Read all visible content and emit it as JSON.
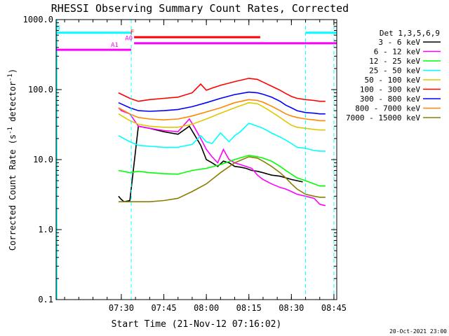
{
  "chart_data": {
    "type": "line",
    "title": "RHESSI Observing Summary Count Rates, Corrected",
    "xlabel": "Start Time (21-Nov-12 07:16:02)",
    "ylabel_main": "Corrected Count Rate (s",
    "ylabel_exp1": "-1",
    "ylabel_mid": " detector",
    "ylabel_exp2": "-1",
    "ylabel_end": ")",
    "y_scale": "log",
    "ylim": [
      0.1,
      1000
    ],
    "xlim_minutes": [
      7.0,
      106.0
    ],
    "x_ticks": [
      {
        "m": 30,
        "label": "07:30"
      },
      {
        "m": 45,
        "label": "07:45"
      },
      {
        "m": 60,
        "label": "08:00"
      },
      {
        "m": 75,
        "label": "08:15"
      },
      {
        "m": 90,
        "label": "08:30"
      },
      {
        "m": 105,
        "label": "08:45"
      }
    ],
    "y_ticks": [
      {
        "v": 0.1,
        "label": "0.1"
      },
      {
        "v": 1,
        "label": "1.0"
      },
      {
        "v": 10,
        "label": "10.0"
      },
      {
        "v": 100,
        "label": "100.0"
      },
      {
        "v": 1000,
        "label": "1000.0"
      }
    ],
    "legend_title": "Det 1,3,5,6,9",
    "legend_position": "right",
    "series": [
      {
        "name": "3 - 6 keV",
        "color": "#000000",
        "x": [
          29,
          30,
          31,
          33,
          36,
          40,
          45,
          50,
          54,
          56,
          58,
          60,
          62,
          64,
          66,
          68,
          70,
          72,
          74,
          76,
          78,
          80,
          83,
          86,
          88,
          90,
          92,
          94
        ],
        "y": [
          3,
          2.7,
          2.5,
          2.6,
          30,
          28,
          25,
          23,
          30,
          22,
          16,
          10,
          9,
          8,
          9.5,
          9,
          8,
          7.8,
          7.5,
          7,
          6.8,
          6.5,
          6,
          5.8,
          5.5,
          5.2,
          5,
          4.8
        ]
      },
      {
        "name": "6 - 12 keV",
        "color": "#ff00ff",
        "x": [
          29,
          30,
          33,
          36,
          40,
          45,
          50,
          54,
          56,
          58,
          60,
          62,
          64,
          66,
          68,
          70,
          72,
          74,
          76,
          78,
          80,
          83,
          86,
          88,
          90,
          92,
          95,
          98,
          100,
          102
        ],
        "y": [
          55,
          50,
          45,
          30,
          28,
          26,
          25,
          38,
          28,
          20,
          14,
          11,
          9,
          14,
          10,
          9,
          8.5,
          8,
          7.5,
          6,
          5.2,
          4.5,
          4,
          3.8,
          3.5,
          3.2,
          3,
          2.8,
          2.3,
          2.2
        ]
      },
      {
        "name": "12 - 25 keV",
        "color": "#00ff00",
        "x": [
          29,
          33,
          36,
          40,
          45,
          50,
          55,
          60,
          65,
          70,
          75,
          78,
          80,
          83,
          86,
          88,
          90,
          92,
          95,
          98,
          100,
          102
        ],
        "y": [
          7,
          6.5,
          6.8,
          6.5,
          6.3,
          6.2,
          7,
          7.5,
          8.5,
          10,
          11.5,
          11,
          10.5,
          9.5,
          8,
          7,
          6.2,
          5.5,
          5,
          4.5,
          4.2,
          4.2
        ]
      },
      {
        "name": "25 - 50 keV",
        "color": "#00ffff",
        "x": [
          29,
          33,
          36,
          40,
          45,
          50,
          55,
          58,
          60,
          62,
          65,
          68,
          70,
          72,
          75,
          78,
          80,
          83,
          86,
          88,
          90,
          92,
          95,
          98,
          100,
          102
        ],
        "y": [
          22,
          18,
          16,
          15.5,
          15,
          15,
          16.5,
          22,
          18,
          17,
          24,
          18,
          22,
          25,
          33,
          30,
          28,
          24,
          21,
          19,
          17,
          15,
          14.5,
          13.5,
          13.2,
          13.2
        ]
      },
      {
        "name": "50 - 100 keV",
        "color": "#e0c800",
        "x": [
          29,
          33,
          36,
          40,
          45,
          50,
          55,
          60,
          65,
          70,
          75,
          78,
          80,
          83,
          86,
          88,
          90,
          92,
          95,
          98,
          100,
          102
        ],
        "y": [
          45,
          36,
          32,
          30,
          29,
          29,
          32,
          38,
          46,
          55,
          65,
          63,
          57,
          48,
          40,
          35,
          31,
          29,
          28,
          27,
          26.5,
          26.5
        ]
      },
      {
        "name": "100 - 300 keV",
        "color": "#ff0000",
        "x": [
          29,
          33,
          36,
          40,
          45,
          50,
          55,
          58,
          60,
          62,
          65,
          70,
          75,
          78,
          80,
          83,
          86,
          88,
          90,
          92,
          95,
          98,
          100,
          102
        ],
        "y": [
          90,
          75,
          68,
          72,
          75,
          78,
          90,
          120,
          98,
          105,
          115,
          130,
          145,
          140,
          128,
          112,
          98,
          88,
          80,
          75,
          72,
          70,
          68,
          68
        ]
      },
      {
        "name": "300 - 800 keV",
        "color": "#0000ff",
        "x": [
          29,
          33,
          36,
          40,
          45,
          50,
          55,
          60,
          65,
          70,
          75,
          78,
          80,
          83,
          86,
          88,
          90,
          92,
          95,
          98,
          100,
          102
        ],
        "y": [
          65,
          55,
          50,
          49,
          50,
          52,
          57,
          65,
          75,
          85,
          92,
          90,
          86,
          78,
          68,
          60,
          55,
          50,
          47,
          46,
          45,
          45
        ]
      },
      {
        "name": "800 - 7000 keV",
        "color": "#ff8800",
        "x": [
          29,
          33,
          36,
          40,
          45,
          50,
          55,
          60,
          65,
          70,
          75,
          78,
          80,
          83,
          86,
          88,
          90,
          92,
          95,
          98,
          100,
          102
        ],
        "y": [
          55,
          45,
          40,
          38,
          37,
          38,
          42,
          48,
          55,
          65,
          72,
          70,
          66,
          58,
          50,
          45,
          42,
          40,
          38,
          37,
          36,
          36
        ]
      },
      {
        "name": "7000 - 15000 keV",
        "color": "#8b7d00",
        "x": [
          29,
          33,
          36,
          40,
          45,
          50,
          55,
          60,
          65,
          70,
          75,
          78,
          80,
          83,
          86,
          88,
          90,
          92,
          95,
          98,
          100,
          102
        ],
        "y": [
          2.5,
          2.5,
          2.5,
          2.5,
          2.6,
          2.8,
          3.5,
          4.5,
          6.5,
          9,
          11,
          10.5,
          9.5,
          8,
          6.5,
          5.5,
          4.5,
          3.8,
          3.2,
          3,
          2.9,
          2.9
        ]
      }
    ],
    "vertical_lines": [
      {
        "m": 33.5,
        "color": "#00ffff",
        "style": "dashed"
      },
      {
        "m": 95.0,
        "color": "#00ffff",
        "style": "dashed"
      },
      {
        "m": 105.0,
        "color": "#00ffff",
        "style": "dashed"
      }
    ],
    "flag_bars": [
      {
        "label": "N",
        "color": "#00ffff",
        "x0": 7.0,
        "x1": 33.5,
        "y": 650
      },
      {
        "label": "",
        "color": "#00ffff",
        "x0": 95.0,
        "x1": 106.0,
        "y": 650
      },
      {
        "label": "F",
        "color": "#ff0000",
        "x0": 34.5,
        "x1": 79.0,
        "y": 560
      },
      {
        "label": "A0",
        "color": "#ff00ff",
        "x0": 34.5,
        "x1": 106.0,
        "y": 460
      },
      {
        "label": "A1",
        "color": "#ff00ff",
        "x0": 7.0,
        "x1": 33.5,
        "y": 370
      }
    ],
    "footer_date": "20-Oct-2021 23:00"
  }
}
